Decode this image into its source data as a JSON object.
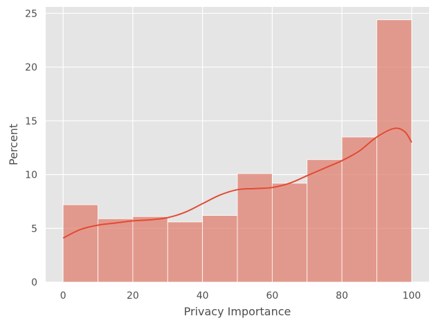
{
  "chart_data": {
    "type": "bar",
    "subtype": "histogram-with-kde",
    "title": "",
    "xlabel": "Privacy Importance",
    "ylabel": "Percent",
    "xlim": [
      -5,
      105
    ],
    "ylim": [
      0,
      25.6
    ],
    "xticks": [
      0,
      20,
      40,
      60,
      80,
      100
    ],
    "yticks": [
      0,
      5,
      10,
      15,
      20,
      25
    ],
    "grid": true,
    "bins": [
      {
        "x0": 0,
        "x1": 10,
        "value": 7.2
      },
      {
        "x0": 10,
        "x1": 20,
        "value": 5.9
      },
      {
        "x0": 20,
        "x1": 30,
        "value": 6.1
      },
      {
        "x0": 30,
        "x1": 40,
        "value": 5.6
      },
      {
        "x0": 40,
        "x1": 50,
        "value": 6.2
      },
      {
        "x0": 50,
        "x1": 60,
        "value": 10.1
      },
      {
        "x0": 60,
        "x1": 70,
        "value": 9.2
      },
      {
        "x0": 70,
        "x1": 80,
        "value": 11.4
      },
      {
        "x0": 80,
        "x1": 90,
        "value": 13.5
      },
      {
        "x0": 90,
        "x1": 100,
        "value": 24.4
      }
    ],
    "kde": {
      "x": [
        0,
        5,
        10,
        15,
        20,
        25,
        30,
        35,
        40,
        45,
        50,
        55,
        60,
        65,
        70,
        75,
        80,
        85,
        90,
        95,
        98,
        100
      ],
      "y": [
        4.1,
        4.9,
        5.3,
        5.5,
        5.7,
        5.8,
        6.0,
        6.5,
        7.3,
        8.1,
        8.6,
        8.7,
        8.8,
        9.2,
        9.9,
        10.6,
        11.3,
        12.2,
        13.5,
        14.3,
        14.0,
        13.0
      ]
    },
    "colors": {
      "bar_fill": "#e07f6f",
      "bar_opacity": 0.75,
      "kde_line": "#e24a33",
      "plot_background": "#e5e5e5",
      "grid": "#ffffff"
    }
  }
}
